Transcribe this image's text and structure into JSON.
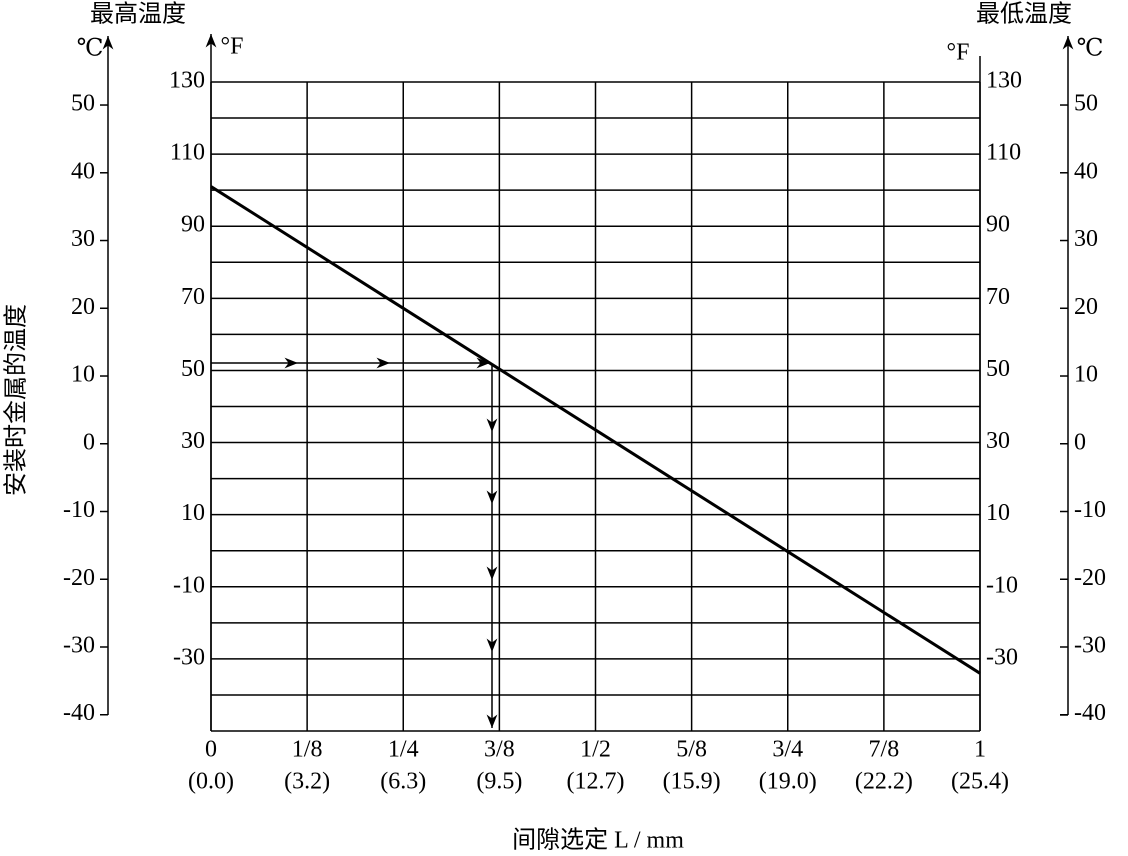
{
  "chart_data": {
    "type": "line",
    "title_left": "最高温度",
    "title_right": "最低温度",
    "ylabel": "安装时金属的温度",
    "xlabel": "间隙选定 L / mm",
    "unit_f": "°F",
    "unit_c": "℃",
    "x": [
      0,
      1
    ],
    "series": [
      {
        "color": "#000000",
        "values": [
          101,
          -34
        ]
      }
    ],
    "xlim": [
      0,
      1
    ],
    "xticks": [
      0,
      {
        "value": 0.125,
        "label": "1/8"
      },
      {
        "value": 0.25,
        "label": "1/4"
      },
      {
        "value": 0.375,
        "label": "3/8"
      },
      {
        "value": 0.5,
        "label": "1/2"
      },
      {
        "value": 0.625,
        "label": "5/8"
      },
      {
        "value": 0.75,
        "label": "3/4"
      },
      {
        "value": 0.875,
        "label": "7/8"
      },
      1
    ],
    "xticks_mm": [
      "(0.0)",
      "(3.2)",
      "(6.3)",
      "(9.5)",
      "(12.7)",
      "(15.9)",
      "(19.0)",
      "(22.2)",
      "(25.4)"
    ],
    "ylim": [
      -50,
      130
    ],
    "yticks": [
      -30,
      -10,
      10,
      30,
      50,
      70,
      90,
      110,
      130
    ],
    "ygrid": [
      -40,
      -20,
      0,
      20,
      40,
      60,
      80,
      100,
      120
    ],
    "y2lim": [
      -42.4,
      53.4
    ],
    "y2ticks": [
      -40,
      -30,
      -20,
      -10,
      0,
      10,
      20,
      30,
      40,
      50
    ]
  }
}
